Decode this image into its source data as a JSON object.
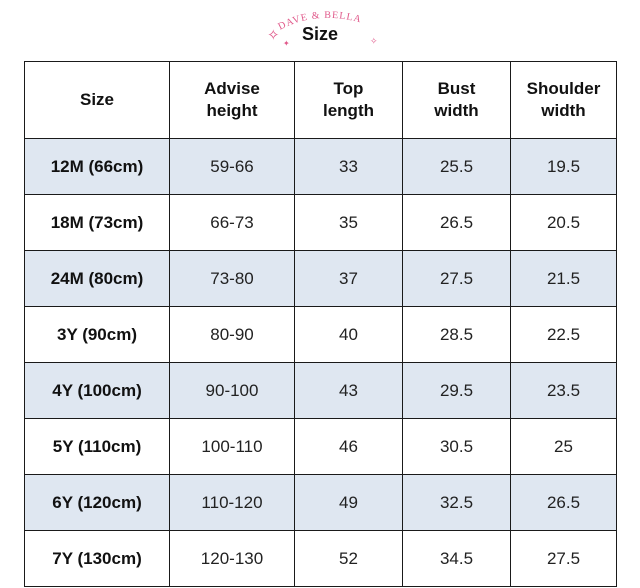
{
  "brand": {
    "logo_text": "DAVE & BELLA",
    "title": "Size"
  },
  "colors": {
    "accent_pink": "#e0588a",
    "shaded_row": "#dfe7f1"
  },
  "table": {
    "headers": [
      "Size",
      "Advise\nheight",
      "Top\nlength",
      "Bust\nwidth",
      "Shoulder\nwidth"
    ],
    "rows": [
      [
        "12M (66cm)",
        "59-66",
        "33",
        "25.5",
        "19.5"
      ],
      [
        "18M (73cm)",
        "66-73",
        "35",
        "26.5",
        "20.5"
      ],
      [
        "24M (80cm)",
        "73-80",
        "37",
        "27.5",
        "21.5"
      ],
      [
        "3Y (90cm)",
        "80-90",
        "40",
        "28.5",
        "22.5"
      ],
      [
        "4Y (100cm)",
        "90-100",
        "43",
        "29.5",
        "23.5"
      ],
      [
        "5Y (110cm)",
        "100-110",
        "46",
        "30.5",
        "25"
      ],
      [
        "6Y (120cm)",
        "110-120",
        "49",
        "32.5",
        "26.5"
      ],
      [
        "7Y (130cm)",
        "120-130",
        "52",
        "34.5",
        "27.5"
      ]
    ]
  }
}
